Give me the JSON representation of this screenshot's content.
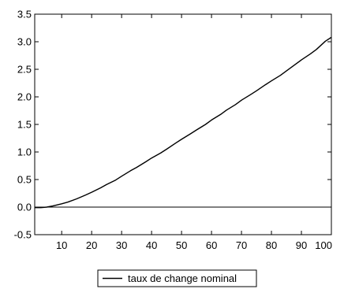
{
  "chart_data": {
    "type": "line",
    "title": "",
    "xlabel": "",
    "ylabel": "",
    "xlim": [
      1,
      100
    ],
    "ylim": [
      -0.5,
      3.5
    ],
    "x_ticks": [
      10,
      20,
      30,
      40,
      50,
      60,
      70,
      80,
      90,
      100
    ],
    "x_tick_labels": [
      "10",
      "20",
      "30",
      "40",
      "50",
      "60",
      "70",
      "80",
      "90",
      "100"
    ],
    "y_ticks": [
      -0.5,
      0.0,
      0.5,
      1.0,
      1.5,
      2.0,
      2.5,
      3.0,
      3.5
    ],
    "y_tick_labels": [
      "-0.5",
      "0.0",
      "0.5",
      "1.0",
      "1.5",
      "2.0",
      "2.5",
      "3.0",
      "3.5"
    ],
    "grid": false,
    "reference_line_y": 0,
    "legend": {
      "position": "bottom-center",
      "entries": [
        "taux de change nominal"
      ]
    },
    "series": [
      {
        "name": "taux de change nominal",
        "color": "#000000",
        "x": [
          1,
          3,
          5,
          7,
          10,
          12,
          15,
          18,
          20,
          23,
          25,
          28,
          30,
          33,
          35,
          38,
          40,
          43,
          45,
          48,
          50,
          53,
          55,
          58,
          60,
          63,
          65,
          68,
          70,
          73,
          75,
          78,
          80,
          83,
          85,
          88,
          90,
          93,
          95,
          98,
          100
        ],
        "y": [
          -0.01,
          -0.01,
          0.0,
          0.02,
          0.06,
          0.09,
          0.15,
          0.22,
          0.27,
          0.35,
          0.41,
          0.49,
          0.56,
          0.66,
          0.72,
          0.82,
          0.89,
          0.98,
          1.05,
          1.16,
          1.23,
          1.33,
          1.4,
          1.5,
          1.58,
          1.68,
          1.76,
          1.86,
          1.94,
          2.04,
          2.11,
          2.22,
          2.29,
          2.39,
          2.47,
          2.59,
          2.67,
          2.78,
          2.86,
          3.01,
          3.08
        ]
      }
    ]
  }
}
